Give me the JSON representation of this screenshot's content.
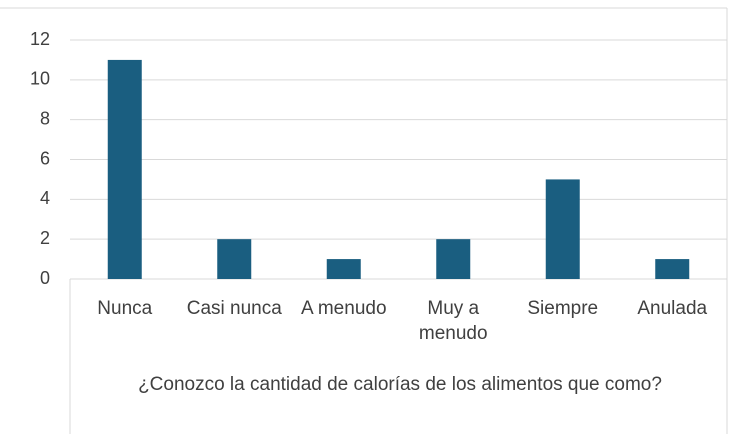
{
  "chart_data": {
    "type": "bar",
    "x_label": "¿Conozco la cantidad de calorías de los alimentos que como?",
    "categories": [
      "Nunca",
      "Casi nunca",
      "A menudo",
      "Muy a menudo",
      "Siempre",
      "Anulada"
    ],
    "values": [
      11,
      2,
      1,
      2,
      5,
      1
    ],
    "color": "#1a5e80",
    "ylim": [
      0,
      12
    ],
    "yticks": [
      0,
      2,
      4,
      6,
      8,
      10,
      12
    ],
    "grid": true
  }
}
